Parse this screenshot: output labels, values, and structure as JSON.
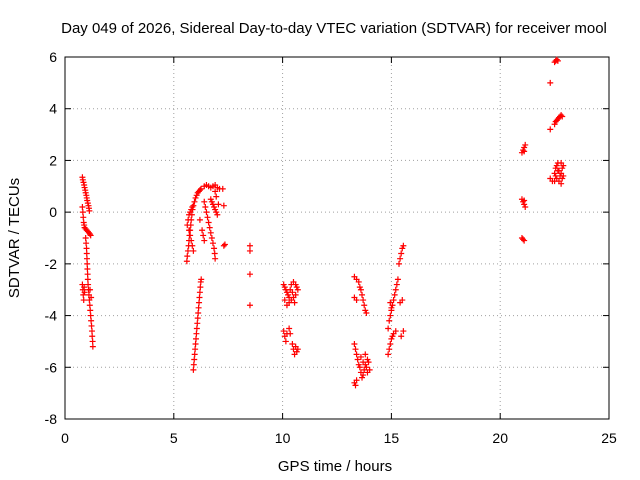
{
  "chart_data": {
    "type": "scatter",
    "title": "Day 049 of 2026, Sidereal Day-to-day VTEC variation (SDTVAR) for receiver mool",
    "xlabel": "GPS time / hours",
    "ylabel": "SDTVAR / TECUs",
    "xlim": [
      0,
      25
    ],
    "ylim": [
      -8,
      6
    ],
    "xticks": [
      0,
      5,
      10,
      15,
      20,
      25
    ],
    "yticks": [
      -8,
      -6,
      -4,
      -2,
      0,
      2,
      4,
      6
    ],
    "grid": true,
    "marker": "+",
    "marker_color": "#ff0000",
    "series": [
      {
        "name": "SDTVAR",
        "points": [
          [
            0.8,
            1.35
          ],
          [
            0.82,
            1.25
          ],
          [
            0.85,
            1.15
          ],
          [
            0.88,
            1.05
          ],
          [
            0.9,
            0.95
          ],
          [
            0.93,
            0.85
          ],
          [
            0.95,
            0.75
          ],
          [
            0.98,
            0.65
          ],
          [
            1.0,
            0.55
          ],
          [
            1.02,
            0.45
          ],
          [
            1.05,
            0.35
          ],
          [
            1.08,
            0.25
          ],
          [
            1.1,
            0.15
          ],
          [
            1.12,
            0.05
          ],
          [
            0.8,
            0.2
          ],
          [
            0.82,
            0.0
          ],
          [
            0.84,
            -0.2
          ],
          [
            0.86,
            -0.4
          ],
          [
            0.88,
            -0.5
          ],
          [
            0.9,
            -0.6
          ],
          [
            0.95,
            -0.65
          ],
          [
            1.0,
            -0.7
          ],
          [
            1.05,
            -0.75
          ],
          [
            1.1,
            -0.8
          ],
          [
            1.15,
            -0.85
          ],
          [
            1.18,
            -0.9
          ],
          [
            0.95,
            -1.0
          ],
          [
            0.97,
            -1.2
          ],
          [
            0.99,
            -1.4
          ],
          [
            1.0,
            -1.6
          ],
          [
            1.01,
            -1.8
          ],
          [
            1.02,
            -2.0
          ],
          [
            1.03,
            -2.2
          ],
          [
            1.04,
            -2.4
          ],
          [
            1.05,
            -2.6
          ],
          [
            1.06,
            -2.8
          ],
          [
            1.08,
            -3.0
          ],
          [
            1.1,
            -3.2
          ],
          [
            1.12,
            -3.4
          ],
          [
            1.14,
            -3.6
          ],
          [
            1.16,
            -3.8
          ],
          [
            1.18,
            -4.0
          ],
          [
            1.2,
            -4.2
          ],
          [
            1.22,
            -4.4
          ],
          [
            1.24,
            -4.6
          ],
          [
            1.25,
            -4.8
          ],
          [
            1.27,
            -5.0
          ],
          [
            1.28,
            -5.2
          ],
          [
            0.8,
            -2.8
          ],
          [
            0.82,
            -3.0
          ],
          [
            0.84,
            -3.2
          ],
          [
            0.86,
            -3.4
          ],
          [
            0.88,
            -2.9
          ],
          [
            0.9,
            -3.1
          ],
          [
            1.15,
            -3.0
          ],
          [
            1.2,
            -3.3
          ],
          [
            5.6,
            -1.9
          ],
          [
            5.62,
            -1.7
          ],
          [
            5.65,
            -1.5
          ],
          [
            5.68,
            -1.3
          ],
          [
            5.7,
            -1.1
          ],
          [
            5.72,
            -0.9
          ],
          [
            5.75,
            -0.7
          ],
          [
            5.78,
            -0.5
          ],
          [
            5.8,
            -0.3
          ],
          [
            5.83,
            -0.1
          ],
          [
            5.86,
            0.1
          ],
          [
            5.9,
            0.25
          ],
          [
            5.95,
            0.4
          ],
          [
            6.0,
            0.55
          ],
          [
            6.05,
            0.65
          ],
          [
            6.1,
            0.75
          ],
          [
            6.15,
            0.8
          ],
          [
            6.2,
            0.85
          ],
          [
            6.25,
            0.9
          ],
          [
            5.62,
            -0.5
          ],
          [
            5.66,
            -0.3
          ],
          [
            5.7,
            -0.1
          ],
          [
            5.75,
            0.0
          ],
          [
            5.8,
            0.1
          ],
          [
            5.85,
            0.2
          ],
          [
            5.7,
            -0.7
          ],
          [
            5.75,
            -0.9
          ],
          [
            5.8,
            -1.1
          ],
          [
            5.85,
            -1.3
          ],
          [
            5.9,
            -1.5
          ],
          [
            6.4,
            1.0
          ],
          [
            6.5,
            1.05
          ],
          [
            6.6,
            1.0
          ],
          [
            6.7,
            0.95
          ],
          [
            6.8,
            1.0
          ],
          [
            6.9,
            1.05
          ],
          [
            7.0,
            0.95
          ],
          [
            7.1,
            0.9
          ],
          [
            7.25,
            0.9
          ],
          [
            6.4,
            0.4
          ],
          [
            6.45,
            0.2
          ],
          [
            6.5,
            0.0
          ],
          [
            6.55,
            -0.2
          ],
          [
            6.6,
            -0.4
          ],
          [
            6.65,
            -0.6
          ],
          [
            6.7,
            -0.8
          ],
          [
            6.75,
            -1.0
          ],
          [
            6.8,
            -1.2
          ],
          [
            6.85,
            -1.4
          ],
          [
            6.88,
            -1.6
          ],
          [
            6.9,
            -1.8
          ],
          [
            6.7,
            0.5
          ],
          [
            6.75,
            0.4
          ],
          [
            6.8,
            0.3
          ],
          [
            6.85,
            0.2
          ],
          [
            6.9,
            0.1
          ],
          [
            6.95,
            0.0
          ],
          [
            7.0,
            -0.1
          ],
          [
            7.05,
            0.3
          ],
          [
            6.9,
            0.8
          ],
          [
            6.95,
            0.6
          ],
          [
            6.3,
            -0.7
          ],
          [
            6.35,
            -0.9
          ],
          [
            6.4,
            -1.1
          ],
          [
            6.2,
            -0.3
          ],
          [
            7.3,
            0.25
          ],
          [
            7.3,
            -1.3
          ],
          [
            7.35,
            -1.25
          ],
          [
            5.9,
            -6.1
          ],
          [
            5.92,
            -5.9
          ],
          [
            5.94,
            -5.7
          ],
          [
            5.96,
            -5.5
          ],
          [
            5.98,
            -5.3
          ],
          [
            6.0,
            -5.1
          ],
          [
            6.02,
            -4.9
          ],
          [
            6.04,
            -4.7
          ],
          [
            6.06,
            -4.5
          ],
          [
            6.08,
            -4.3
          ],
          [
            6.1,
            -4.1
          ],
          [
            6.12,
            -3.9
          ],
          [
            6.14,
            -3.7
          ],
          [
            6.16,
            -3.5
          ],
          [
            6.18,
            -3.3
          ],
          [
            6.2,
            -3.1
          ],
          [
            6.22,
            -2.9
          ],
          [
            6.24,
            -2.7
          ],
          [
            6.26,
            -2.6
          ],
          [
            8.5,
            -1.3
          ],
          [
            8.5,
            -1.5
          ],
          [
            8.5,
            -2.4
          ],
          [
            8.5,
            -3.6
          ],
          [
            10.05,
            -2.8
          ],
          [
            10.1,
            -2.9
          ],
          [
            10.15,
            -3.0
          ],
          [
            10.2,
            -3.1
          ],
          [
            10.25,
            -3.2
          ],
          [
            10.3,
            -3.3
          ],
          [
            10.35,
            -3.0
          ],
          [
            10.4,
            -2.8
          ],
          [
            10.45,
            -3.1
          ],
          [
            10.5,
            -3.3
          ],
          [
            10.55,
            -3.5
          ],
          [
            10.6,
            -3.2
          ],
          [
            10.65,
            -2.9
          ],
          [
            10.7,
            -3.0
          ],
          [
            10.1,
            -3.4
          ],
          [
            10.2,
            -3.6
          ],
          [
            10.3,
            -3.5
          ],
          [
            10.4,
            -3.4
          ],
          [
            10.5,
            -2.7
          ],
          [
            10.6,
            -2.8
          ],
          [
            10.05,
            -4.6
          ],
          [
            10.1,
            -4.8
          ],
          [
            10.15,
            -5.0
          ],
          [
            10.2,
            -4.7
          ],
          [
            10.3,
            -4.5
          ],
          [
            10.35,
            -4.7
          ],
          [
            10.45,
            -5.1
          ],
          [
            10.5,
            -5.3
          ],
          [
            10.55,
            -5.5
          ],
          [
            10.6,
            -5.2
          ],
          [
            10.65,
            -5.4
          ],
          [
            10.7,
            -5.3
          ],
          [
            13.3,
            -2.5
          ],
          [
            13.4,
            -2.6
          ],
          [
            13.5,
            -2.7
          ],
          [
            13.55,
            -2.9
          ],
          [
            13.6,
            -3.0
          ],
          [
            13.65,
            -3.2
          ],
          [
            13.7,
            -3.4
          ],
          [
            13.75,
            -3.6
          ],
          [
            13.8,
            -3.8
          ],
          [
            13.85,
            -3.9
          ],
          [
            13.4,
            -3.4
          ],
          [
            13.3,
            -3.3
          ],
          [
            13.3,
            -5.1
          ],
          [
            13.35,
            -5.3
          ],
          [
            13.4,
            -5.5
          ],
          [
            13.45,
            -5.7
          ],
          [
            13.5,
            -5.9
          ],
          [
            13.55,
            -6.0
          ],
          [
            13.6,
            -6.2
          ],
          [
            13.65,
            -6.4
          ],
          [
            13.7,
            -6.3
          ],
          [
            13.75,
            -6.1
          ],
          [
            13.8,
            -5.9
          ],
          [
            13.85,
            -6.0
          ],
          [
            13.9,
            -6.2
          ],
          [
            13.95,
            -5.8
          ],
          [
            13.3,
            -6.6
          ],
          [
            13.35,
            -6.7
          ],
          [
            13.4,
            -6.5
          ],
          [
            13.6,
            -5.6
          ],
          [
            13.7,
            -5.8
          ],
          [
            13.8,
            -5.5
          ],
          [
            13.9,
            -5.7
          ],
          [
            14.0,
            -6.1
          ],
          [
            14.85,
            -4.5
          ],
          [
            14.9,
            -4.2
          ],
          [
            14.95,
            -4.0
          ],
          [
            15.0,
            -3.8
          ],
          [
            15.05,
            -3.6
          ],
          [
            15.1,
            -3.4
          ],
          [
            15.15,
            -3.2
          ],
          [
            15.2,
            -3.0
          ],
          [
            15.25,
            -2.8
          ],
          [
            15.3,
            -2.6
          ],
          [
            14.95,
            -3.5
          ],
          [
            15.0,
            -3.7
          ],
          [
            14.85,
            -5.5
          ],
          [
            14.9,
            -5.3
          ],
          [
            14.95,
            -5.1
          ],
          [
            15.0,
            -4.9
          ],
          [
            15.05,
            -4.8
          ],
          [
            15.1,
            -4.7
          ],
          [
            15.2,
            -4.6
          ],
          [
            15.35,
            -2.0
          ],
          [
            15.4,
            -1.8
          ],
          [
            15.45,
            -1.6
          ],
          [
            15.5,
            -1.4
          ],
          [
            15.55,
            -1.3
          ],
          [
            15.5,
            -3.4
          ],
          [
            15.4,
            -3.5
          ],
          [
            15.55,
            -4.6
          ],
          [
            15.45,
            -4.8
          ],
          [
            21.0,
            2.3
          ],
          [
            21.05,
            2.4
          ],
          [
            21.1,
            2.5
          ],
          [
            21.15,
            2.6
          ],
          [
            21.1,
            2.35
          ],
          [
            21.0,
            0.5
          ],
          [
            21.05,
            0.4
          ],
          [
            21.1,
            0.3
          ],
          [
            21.15,
            0.2
          ],
          [
            21.1,
            0.45
          ],
          [
            21.0,
            -1.0
          ],
          [
            21.05,
            -1.05
          ],
          [
            21.1,
            -1.1
          ],
          [
            22.3,
            5.0
          ],
          [
            22.5,
            5.8
          ],
          [
            22.55,
            5.85
          ],
          [
            22.6,
            5.9
          ],
          [
            22.65,
            5.85
          ],
          [
            22.3,
            3.2
          ],
          [
            22.5,
            3.4
          ],
          [
            22.55,
            3.5
          ],
          [
            22.6,
            3.55
          ],
          [
            22.65,
            3.6
          ],
          [
            22.7,
            3.65
          ],
          [
            22.75,
            3.7
          ],
          [
            22.8,
            3.75
          ],
          [
            22.85,
            3.7
          ],
          [
            22.3,
            1.3
          ],
          [
            22.4,
            1.2
          ],
          [
            22.5,
            1.5
          ],
          [
            22.55,
            1.7
          ],
          [
            22.6,
            1.8
          ],
          [
            22.65,
            1.9
          ],
          [
            22.7,
            1.6
          ],
          [
            22.75,
            1.4
          ],
          [
            22.8,
            1.5
          ],
          [
            22.85,
            1.7
          ],
          [
            22.9,
            1.4
          ],
          [
            22.6,
            1.3
          ],
          [
            22.7,
            1.2
          ],
          [
            22.8,
            1.9
          ],
          [
            22.9,
            1.8
          ],
          [
            22.5,
            1.2
          ],
          [
            22.8,
            1.1
          ],
          [
            22.85,
            1.3
          ],
          [
            22.55,
            1.4
          ],
          [
            22.65,
            1.6
          ]
        ]
      }
    ]
  }
}
